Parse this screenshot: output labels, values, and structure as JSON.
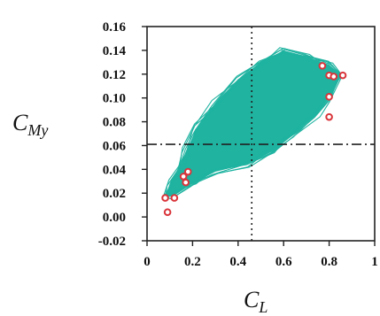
{
  "chart_data": {
    "type": "scatter",
    "xlabel": {
      "main": "C",
      "sub": "L"
    },
    "ylabel": {
      "main": "C",
      "sub": "My"
    },
    "xlim": [
      0,
      1
    ],
    "ylim": [
      -0.02,
      0.16
    ],
    "x_ticks": [
      0,
      0.2,
      0.4,
      0.6,
      0.8,
      1
    ],
    "x_tick_labels": [
      "0",
      "0.2",
      "0.4",
      "0.6",
      "0.8",
      "1"
    ],
    "y_ticks": [
      -0.02,
      0.0,
      0.02,
      0.04,
      0.06,
      0.08,
      0.1,
      0.12,
      0.14,
      0.16
    ],
    "y_tick_labels": [
      "-0.02",
      "0.00",
      "0.02",
      "0.04",
      "0.06",
      "0.08",
      "0.10",
      "0.12",
      "0.14",
      "0.16"
    ],
    "reference_lines": {
      "vertical_x": 0.46,
      "horizontal_y": 0.061
    },
    "trajectory_color": "#1fb3a0",
    "marker_color": "#d9343a",
    "trajectory_region": [
      [
        0.08,
        0.016
      ],
      [
        0.12,
        0.018
      ],
      [
        0.2,
        0.028
      ],
      [
        0.3,
        0.038
      ],
      [
        0.45,
        0.045
      ],
      [
        0.55,
        0.055
      ],
      [
        0.65,
        0.07
      ],
      [
        0.75,
        0.087
      ],
      [
        0.8,
        0.1
      ],
      [
        0.85,
        0.12
      ],
      [
        0.8,
        0.128
      ],
      [
        0.7,
        0.135
      ],
      [
        0.6,
        0.14
      ],
      [
        0.5,
        0.13
      ],
      [
        0.4,
        0.115
      ],
      [
        0.3,
        0.095
      ],
      [
        0.22,
        0.075
      ],
      [
        0.17,
        0.055
      ],
      [
        0.14,
        0.04
      ],
      [
        0.1,
        0.028
      ]
    ],
    "markers": [
      [
        0.08,
        0.016
      ],
      [
        0.12,
        0.016
      ],
      [
        0.09,
        0.004
      ],
      [
        0.16,
        0.034
      ],
      [
        0.18,
        0.038
      ],
      [
        0.17,
        0.029
      ],
      [
        0.77,
        0.127
      ],
      [
        0.8,
        0.119
      ],
      [
        0.82,
        0.118
      ],
      [
        0.86,
        0.119
      ],
      [
        0.8,
        0.101
      ],
      [
        0.8,
        0.084
      ]
    ]
  }
}
